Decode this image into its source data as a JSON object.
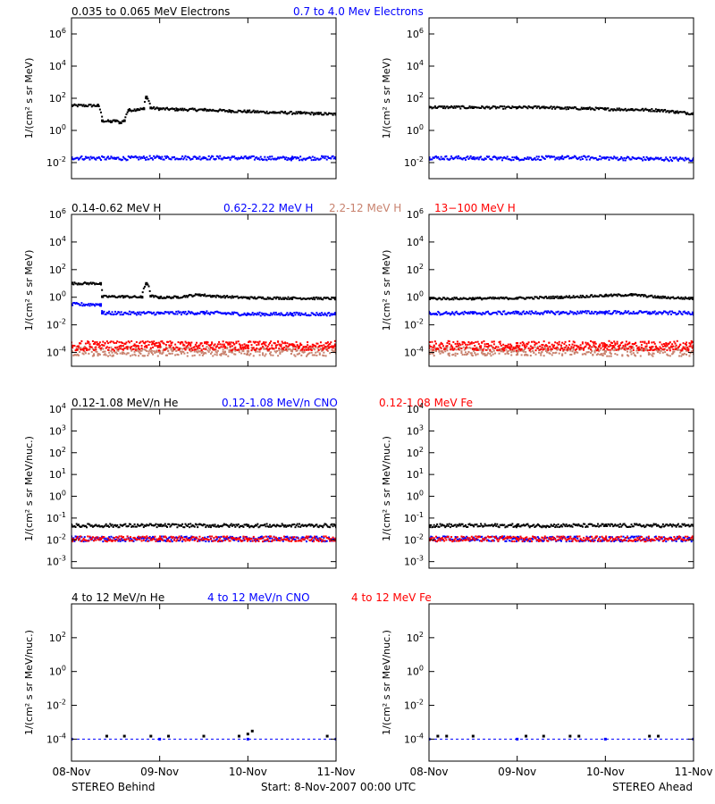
{
  "colors": {
    "black": "#000000",
    "blue": "#0000ff",
    "salmon": "#c8826e",
    "red": "#ff0000",
    "frame": "#000000"
  },
  "footer": {
    "left": "STEREO Behind",
    "center": "Start:  8-Nov-2007 00:00 UTC",
    "right": "STEREO Ahead"
  },
  "chart_data": [
    {
      "type": "scatter",
      "row": 0,
      "panel": "STEREO Behind",
      "yscale": "log",
      "ylabel": "1/(cm² s sr MeV)",
      "ylim": [
        0.001,
        10000000
      ],
      "yticks": [
        {
          "v": 0.01,
          "b": "10",
          "e": "-2"
        },
        {
          "v": 1,
          "b": "10",
          "e": "0"
        },
        {
          "v": 100,
          "b": "10",
          "e": "2"
        },
        {
          "v": 10000,
          "b": "10",
          "e": "4"
        },
        {
          "v": 1000000,
          "b": "10",
          "e": "6"
        }
      ],
      "xlim": [
        0,
        3
      ],
      "xticks": [
        {
          "v": 0,
          "l": "08-Nov"
        },
        {
          "v": 1,
          "l": "09-Nov"
        },
        {
          "v": 2,
          "l": "10-Nov"
        },
        {
          "v": 3,
          "l": "11-Nov"
        }
      ],
      "series": [
        {
          "name": "0.035 to 0.065 MeV Electrons",
          "color": "black",
          "x": [
            0,
            0.3,
            0.35,
            0.45,
            0.5,
            0.55,
            0.6,
            0.65,
            0.75,
            0.82,
            0.85,
            0.9,
            1.0,
            1.2,
            1.5,
            1.8,
            2.0,
            2.3,
            2.6,
            2.8,
            3.0
          ],
          "y": [
            35,
            35,
            4,
            3.5,
            4,
            3,
            4,
            18,
            20,
            22,
            120,
            25,
            22,
            20,
            19,
            16,
            15,
            13,
            12,
            11,
            10
          ]
        },
        {
          "name": "0.7 to 4.0 Mev Electrons",
          "color": "blue",
          "x": [
            0,
            0.5,
            1.0,
            1.5,
            2.0,
            2.5,
            3.0
          ],
          "y": [
            0.02,
            0.018,
            0.02,
            0.02,
            0.019,
            0.018,
            0.02
          ]
        }
      ]
    },
    {
      "type": "scatter",
      "row": 0,
      "panel": "STEREO Ahead",
      "yscale": "log",
      "ylabel": "1/(cm² s sr MeV)",
      "ylim": [
        0.001,
        10000000
      ],
      "yticks": [
        {
          "v": 0.01,
          "b": "10",
          "e": "-2"
        },
        {
          "v": 1,
          "b": "10",
          "e": "0"
        },
        {
          "v": 100,
          "b": "10",
          "e": "2"
        },
        {
          "v": 10000,
          "b": "10",
          "e": "4"
        },
        {
          "v": 1000000,
          "b": "10",
          "e": "6"
        }
      ],
      "xlim": [
        0,
        3
      ],
      "xticks": [
        {
          "v": 0,
          "l": "08-Nov"
        },
        {
          "v": 1,
          "l": "09-Nov"
        },
        {
          "v": 2,
          "l": "10-Nov"
        },
        {
          "v": 3,
          "l": "11-Nov"
        }
      ],
      "series": [
        {
          "name": "0.035 to 0.065 MeV Electrons",
          "color": "black",
          "x": [
            0,
            0.5,
            1.0,
            1.3,
            1.5,
            1.8,
            2.0,
            2.3,
            2.6,
            2.8,
            3.0
          ],
          "y": [
            28,
            27,
            26,
            28,
            24,
            23,
            21,
            20,
            18,
            14,
            11
          ]
        },
        {
          "name": "0.7 to 4.0 Mev Electrons",
          "color": "blue",
          "x": [
            0,
            0.5,
            1.0,
            1.5,
            2.0,
            2.5,
            3.0
          ],
          "y": [
            0.02,
            0.019,
            0.018,
            0.02,
            0.019,
            0.017,
            0.016
          ]
        }
      ]
    },
    {
      "type": "scatter",
      "row": 1,
      "panel": "STEREO Behind",
      "yscale": "log",
      "ylabel": "1/(cm² s sr MeV)",
      "ylim": [
        1e-05,
        1000000
      ],
      "yticks": [
        {
          "v": 0.0001,
          "b": "10",
          "e": "-4"
        },
        {
          "v": 0.01,
          "b": "10",
          "e": "-2"
        },
        {
          "v": 1,
          "b": "10",
          "e": "0"
        },
        {
          "v": 100,
          "b": "10",
          "e": "2"
        },
        {
          "v": 10000,
          "b": "10",
          "e": "4"
        },
        {
          "v": 1000000,
          "b": "10",
          "e": "6"
        }
      ],
      "xlim": [
        0,
        3
      ],
      "xticks": [
        {
          "v": 0,
          "l": "08-Nov"
        },
        {
          "v": 1,
          "l": "09-Nov"
        },
        {
          "v": 2,
          "l": "10-Nov"
        },
        {
          "v": 3,
          "l": "11-Nov"
        }
      ],
      "series": [
        {
          "name": "0.14-0.62 MeV H",
          "color": "black",
          "x": [
            0,
            0.33,
            0.35,
            0.6,
            0.8,
            0.85,
            0.9,
            1.0,
            1.2,
            1.45,
            1.6,
            2.0,
            2.5,
            3.0
          ],
          "y": [
            10,
            10,
            1.1,
            1.1,
            1.0,
            10,
            1.2,
            0.95,
            1.0,
            1.5,
            1.2,
            0.9,
            0.85,
            0.8
          ]
        },
        {
          "name": "0.62-2.22 MeV H",
          "color": "blue",
          "x": [
            0,
            0.33,
            0.35,
            1.0,
            1.5,
            2.0,
            2.5,
            3.0
          ],
          "y": [
            0.3,
            0.3,
            0.07,
            0.07,
            0.075,
            0.06,
            0.06,
            0.06
          ]
        },
        {
          "name": "2.2-12 MeV H",
          "color": "salmon",
          "x": [
            0,
            1.0,
            2.0,
            3.0
          ],
          "y": [
            0.00012,
            0.00012,
            0.00012,
            0.00012
          ]
        },
        {
          "name": "13−100 MeV H",
          "color": "red",
          "x": [
            0,
            1.0,
            2.0,
            3.0
          ],
          "y": [
            0.0003,
            0.0003,
            0.0003,
            0.0003
          ]
        }
      ]
    },
    {
      "type": "scatter",
      "row": 1,
      "panel": "STEREO Ahead",
      "yscale": "log",
      "ylabel": "1/(cm² s sr MeV)",
      "ylim": [
        1e-05,
        1000000
      ],
      "yticks": [
        {
          "v": 0.0001,
          "b": "10",
          "e": "-4"
        },
        {
          "v": 0.01,
          "b": "10",
          "e": "-2"
        },
        {
          "v": 1,
          "b": "10",
          "e": "0"
        },
        {
          "v": 100,
          "b": "10",
          "e": "2"
        },
        {
          "v": 10000,
          "b": "10",
          "e": "4"
        },
        {
          "v": 1000000,
          "b": "10",
          "e": "6"
        }
      ],
      "xlim": [
        0,
        3
      ],
      "xticks": [
        {
          "v": 0,
          "l": "08-Nov"
        },
        {
          "v": 1,
          "l": "09-Nov"
        },
        {
          "v": 2,
          "l": "10-Nov"
        },
        {
          "v": 3,
          "l": "11-Nov"
        }
      ],
      "series": [
        {
          "name": "0.14-0.62 MeV H",
          "color": "black",
          "x": [
            0,
            0.5,
            1.0,
            1.5,
            2.0,
            2.3,
            2.6,
            3.0
          ],
          "y": [
            0.8,
            0.8,
            0.85,
            1.0,
            1.3,
            1.5,
            1.0,
            0.8
          ]
        },
        {
          "name": "0.62-2.22 MeV H",
          "color": "blue",
          "x": [
            0,
            0.5,
            1.0,
            1.5,
            2.0,
            2.5,
            3.0
          ],
          "y": [
            0.07,
            0.07,
            0.075,
            0.075,
            0.08,
            0.075,
            0.07
          ]
        },
        {
          "name": "2.2-12 MeV H",
          "color": "salmon",
          "x": [
            0,
            1.0,
            2.0,
            3.0
          ],
          "y": [
            0.00012,
            0.00012,
            0.00012,
            0.00012
          ]
        },
        {
          "name": "13−100 MeV H",
          "color": "red",
          "x": [
            0,
            1.0,
            2.0,
            3.0
          ],
          "y": [
            0.0003,
            0.0003,
            0.0003,
            0.0003
          ]
        }
      ]
    },
    {
      "type": "scatter",
      "row": 2,
      "panel": "STEREO Behind",
      "yscale": "log",
      "ylabel": "1/(cm² s sr MeV/nuc.)",
      "ylim": [
        0.0005,
        10000
      ],
      "yticks": [
        {
          "v": 0.001,
          "b": "10",
          "e": "-3"
        },
        {
          "v": 0.01,
          "b": "10",
          "e": "-2"
        },
        {
          "v": 0.1,
          "b": "10",
          "e": "-1"
        },
        {
          "v": 1,
          "b": "10",
          "e": "0"
        },
        {
          "v": 10,
          "b": "10",
          "e": "1"
        },
        {
          "v": 100,
          "b": "10",
          "e": "2"
        },
        {
          "v": 1000,
          "b": "10",
          "e": "3"
        },
        {
          "v": 10000,
          "b": "10",
          "e": "4"
        }
      ],
      "xlim": [
        0,
        3
      ],
      "xticks": [
        {
          "v": 0,
          "l": "08-Nov"
        },
        {
          "v": 1,
          "l": "09-Nov"
        },
        {
          "v": 2,
          "l": "10-Nov"
        },
        {
          "v": 3,
          "l": "11-Nov"
        }
      ],
      "series": [
        {
          "name": "0.12-1.08 MeV/n He",
          "color": "black",
          "x": [
            0,
            1.0,
            2.0,
            3.0
          ],
          "y": [
            0.045,
            0.045,
            0.045,
            0.045
          ]
        },
        {
          "name": "0.12-1.08 MeV/n CNO",
          "color": "blue",
          "x": [
            0,
            1.0,
            2.0,
            3.0
          ],
          "y": [
            0.011,
            0.011,
            0.011,
            0.011
          ]
        },
        {
          "name": "0.12-1.08 MeV Fe",
          "color": "red",
          "x": [
            0,
            1.0,
            2.0,
            3.0
          ],
          "y": [
            0.011,
            0.011,
            0.011,
            0.011
          ]
        }
      ]
    },
    {
      "type": "scatter",
      "row": 2,
      "panel": "STEREO Ahead",
      "yscale": "log",
      "ylabel": "1/(cm² s sr MeV/nuc.)",
      "ylim": [
        0.0005,
        10000
      ],
      "yticks": [
        {
          "v": 0.001,
          "b": "10",
          "e": "-3"
        },
        {
          "v": 0.01,
          "b": "10",
          "e": "-2"
        },
        {
          "v": 0.1,
          "b": "10",
          "e": "-1"
        },
        {
          "v": 1,
          "b": "10",
          "e": "0"
        },
        {
          "v": 10,
          "b": "10",
          "e": "1"
        },
        {
          "v": 100,
          "b": "10",
          "e": "2"
        },
        {
          "v": 1000,
          "b": "10",
          "e": "3"
        },
        {
          "v": 10000,
          "b": "10",
          "e": "4"
        }
      ],
      "xlim": [
        0,
        3
      ],
      "xticks": [
        {
          "v": 0,
          "l": "08-Nov"
        },
        {
          "v": 1,
          "l": "09-Nov"
        },
        {
          "v": 2,
          "l": "10-Nov"
        },
        {
          "v": 3,
          "l": "11-Nov"
        }
      ],
      "series": [
        {
          "name": "0.12-1.08 MeV/n He",
          "color": "black",
          "x": [
            0,
            1.0,
            2.0,
            3.0
          ],
          "y": [
            0.045,
            0.045,
            0.045,
            0.045
          ]
        },
        {
          "name": "0.12-1.08 MeV/n CNO",
          "color": "blue",
          "x": [
            0,
            1.0,
            2.0,
            3.0
          ],
          "y": [
            0.011,
            0.011,
            0.011,
            0.011
          ]
        },
        {
          "name": "0.12-1.08 MeV Fe",
          "color": "red",
          "x": [
            0,
            1.0,
            2.0,
            3.0
          ],
          "y": [
            0.011,
            0.011,
            0.011,
            0.011
          ]
        }
      ]
    },
    {
      "type": "scatter",
      "row": 3,
      "panel": "STEREO Behind",
      "yscale": "log",
      "ylabel": "1/(cm² s sr MeV/nuc.)",
      "ylim": [
        5e-06,
        10000
      ],
      "yticks": [
        {
          "v": 0.0001,
          "b": "10",
          "e": "-4"
        },
        {
          "v": 0.01,
          "b": "10",
          "e": "-2"
        },
        {
          "v": 1,
          "b": "10",
          "e": "0"
        },
        {
          "v": 100,
          "b": "10",
          "e": "2"
        }
      ],
      "xlim": [
        0,
        3
      ],
      "xticks": [
        {
          "v": 0,
          "l": "08-Nov"
        },
        {
          "v": 1,
          "l": "09-Nov"
        },
        {
          "v": 2,
          "l": "10-Nov"
        },
        {
          "v": 3,
          "l": "11-Nov"
        }
      ],
      "series": [
        {
          "name": "4 to 12 MeV/n He",
          "color": "black",
          "x": [
            0.4,
            0.6,
            0.9,
            1.1,
            1.5,
            1.9,
            2.0,
            2.05,
            2.9
          ],
          "y": [
            0.00015,
            0.00015,
            0.00015,
            0.00015,
            0.00015,
            0.00015,
            0.0002,
            0.0003,
            0.00015
          ]
        },
        {
          "name": "4 to 12 MeV/n CNO",
          "color": "blue",
          "x": [
            0,
            1.0,
            2.0,
            3.0
          ],
          "y": [
            0.0001,
            0.0001,
            0.0001,
            0.0001
          ]
        },
        {
          "name": "4 to 12 MeV Fe",
          "color": "red",
          "x": [],
          "y": []
        }
      ]
    },
    {
      "type": "scatter",
      "row": 3,
      "panel": "STEREO Ahead",
      "yscale": "log",
      "ylabel": "1/(cm² s sr MeV/nuc.)",
      "ylim": [
        5e-06,
        10000
      ],
      "yticks": [
        {
          "v": 0.0001,
          "b": "10",
          "e": "-4"
        },
        {
          "v": 0.01,
          "b": "10",
          "e": "-2"
        },
        {
          "v": 1,
          "b": "10",
          "e": "0"
        },
        {
          "v": 100,
          "b": "10",
          "e": "2"
        }
      ],
      "xlim": [
        0,
        3
      ],
      "xticks": [
        {
          "v": 0,
          "l": "08-Nov"
        },
        {
          "v": 1,
          "l": "09-Nov"
        },
        {
          "v": 2,
          "l": "10-Nov"
        },
        {
          "v": 3,
          "l": "11-Nov"
        }
      ],
      "series": [
        {
          "name": "4 to 12 MeV/n He",
          "color": "black",
          "x": [
            0.1,
            0.2,
            0.5,
            1.1,
            1.3,
            1.6,
            1.7,
            2.5,
            2.6
          ],
          "y": [
            0.00015,
            0.00015,
            0.00015,
            0.00015,
            0.00015,
            0.00015,
            0.00015,
            0.00015,
            0.00015
          ]
        },
        {
          "name": "4 to 12 MeV/n CNO",
          "color": "blue",
          "x": [
            0,
            1.0,
            2.0,
            3.0
          ],
          "y": [
            0.0001,
            0.0001,
            0.0001,
            0.0001
          ]
        },
        {
          "name": "4 to 12 MeV Fe",
          "color": "red",
          "x": [],
          "y": []
        }
      ]
    }
  ]
}
